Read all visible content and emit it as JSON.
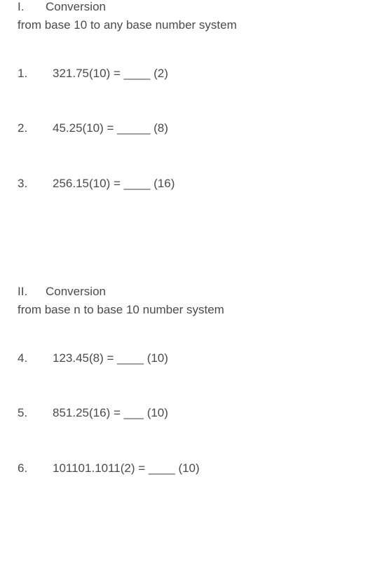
{
  "section1": {
    "roman": "I.",
    "title": "Conversion",
    "subtitle": "from base 10 to any base number system"
  },
  "problems1": [
    {
      "num": "1.",
      "text": "321.75(10) = ____ (2)"
    },
    {
      "num": "2.",
      "text": "45.25(10) = _____ (8)"
    },
    {
      "num": "3.",
      "text": "256.15(10) = ____ (16)"
    }
  ],
  "section2": {
    "roman": "II.",
    "title": "Conversion",
    "subtitle": "from base n to base  10 number system"
  },
  "problems2": [
    {
      "num": "4.",
      "text": "123.45(8) = ____ (10)"
    },
    {
      "num": "5.",
      "text": "851.25(16) = ___ (10)"
    },
    {
      "num": "6.",
      "text": "101101.1011(2) = ____ (10)"
    }
  ]
}
